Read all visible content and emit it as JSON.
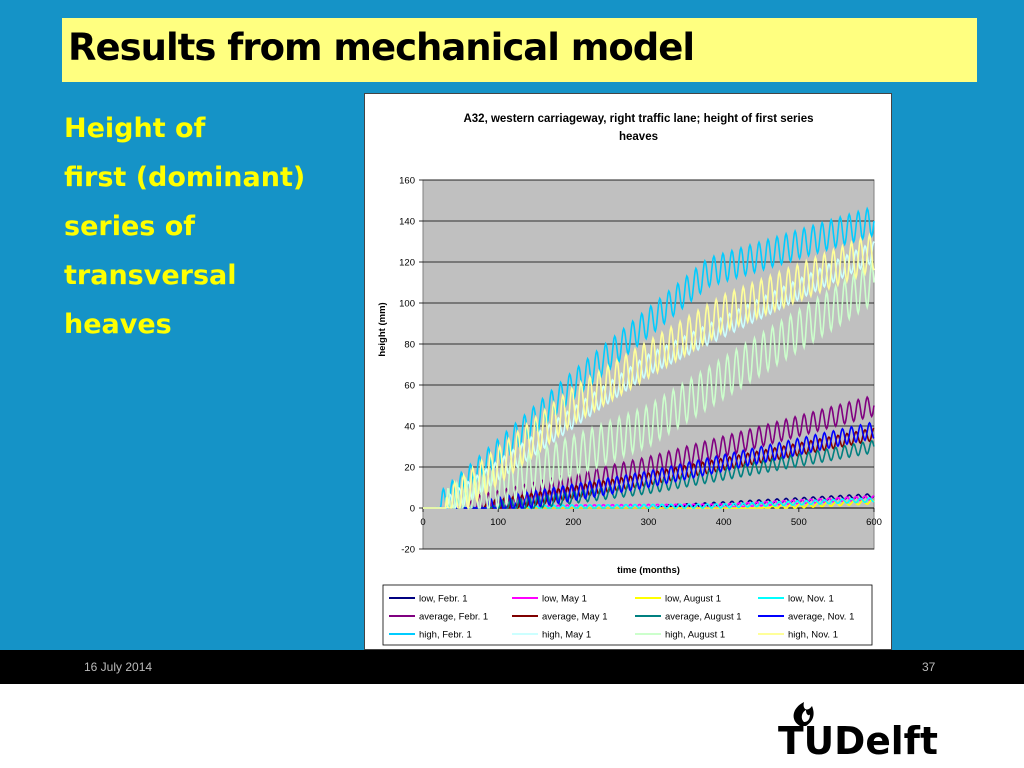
{
  "slide": {
    "title": "Results from mechanical model",
    "text_lines": [
      "Height of",
      "first (dominant)",
      "series of",
      "transversal",
      "heaves"
    ]
  },
  "footer": {
    "date": "16 July 2014",
    "page": "37"
  },
  "logo": {
    "text": "TUDelft"
  },
  "colors": {
    "background": "#1593c7",
    "title_box": "#ffff80",
    "text": "#ffff00"
  },
  "chart_data": {
    "type": "line",
    "title": "A32, western carriageway, right traffic lane; height of first series heaves",
    "xlabel": "time (months)",
    "ylabel": "height (mm)",
    "xlim": [
      0,
      600
    ],
    "ylim": [
      -20,
      160
    ],
    "x_ticks": [
      0,
      100,
      200,
      300,
      400,
      500,
      600
    ],
    "y_ticks": [
      -20,
      0,
      20,
      40,
      60,
      80,
      100,
      120,
      140,
      160
    ],
    "grid": true,
    "legend_position": "bottom",
    "oscillation_period_months": 12,
    "series": [
      {
        "name": "low, Febr. 1",
        "color": "#000080",
        "amplitude": 1,
        "points": [
          [
            0,
            0
          ],
          [
            300,
            0
          ],
          [
            400,
            2
          ],
          [
            600,
            6
          ]
        ]
      },
      {
        "name": "low, May 1",
        "color": "#ff00ff",
        "amplitude": 1,
        "points": [
          [
            0,
            0
          ],
          [
            400,
            1
          ],
          [
            600,
            5
          ]
        ]
      },
      {
        "name": "low, August 1",
        "color": "#ffff00",
        "amplitude": 1,
        "points": [
          [
            0,
            0
          ],
          [
            450,
            0
          ],
          [
            600,
            3
          ]
        ]
      },
      {
        "name": "low, Nov. 1",
        "color": "#00ffff",
        "amplitude": 1,
        "points": [
          [
            0,
            0
          ],
          [
            400,
            1
          ],
          [
            600,
            4
          ]
        ]
      },
      {
        "name": "average, Febr. 1",
        "color": "#800080",
        "amplitude": 5,
        "points": [
          [
            0,
            0
          ],
          [
            60,
            0
          ],
          [
            300,
            20
          ],
          [
            600,
            50
          ]
        ]
      },
      {
        "name": "average, May 1",
        "color": "#800000",
        "amplitude": 3,
        "points": [
          [
            0,
            0
          ],
          [
            80,
            0
          ],
          [
            300,
            14
          ],
          [
            600,
            36
          ]
        ]
      },
      {
        "name": "average, August 1",
        "color": "#008080",
        "amplitude": 3,
        "points": [
          [
            0,
            0
          ],
          [
            90,
            0
          ],
          [
            300,
            10
          ],
          [
            600,
            30
          ]
        ]
      },
      {
        "name": "average, Nov. 1",
        "color": "#0000ff",
        "amplitude": 4,
        "points": [
          [
            0,
            0
          ],
          [
            80,
            0
          ],
          [
            300,
            14
          ],
          [
            600,
            38
          ]
        ]
      },
      {
        "name": "high, Febr. 1",
        "color": "#00ccff",
        "amplitude": 7,
        "points": [
          [
            0,
            0
          ],
          [
            20,
            0
          ],
          [
            200,
            60
          ],
          [
            380,
            115
          ],
          [
            600,
            140
          ]
        ]
      },
      {
        "name": "high, May 1",
        "color": "#ccffff",
        "amplitude": 5,
        "points": [
          [
            0,
            0
          ],
          [
            30,
            0
          ],
          [
            300,
            70
          ],
          [
            600,
            125
          ]
        ]
      },
      {
        "name": "high, August 1",
        "color": "#ccffcc",
        "amplitude": 10,
        "points": [
          [
            0,
            0
          ],
          [
            30,
            0
          ],
          [
            300,
            40
          ],
          [
            600,
            110
          ]
        ]
      },
      {
        "name": "high, Nov. 1",
        "color": "#ffff99",
        "amplitude": 9,
        "points": [
          [
            0,
            0
          ],
          [
            30,
            0
          ],
          [
            200,
            50
          ],
          [
            400,
            95
          ],
          [
            600,
            125
          ]
        ]
      }
    ]
  }
}
